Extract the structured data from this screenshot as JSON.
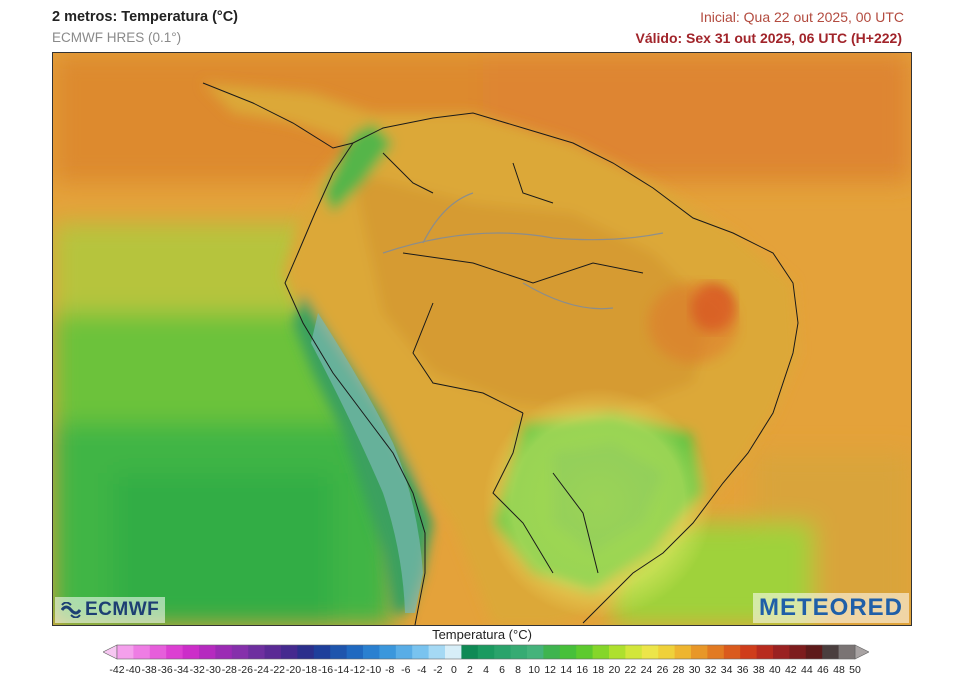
{
  "header": {
    "title": "2 metros: Temperatura (°C)",
    "model": "ECMWF HRES (0.1°)",
    "initial": "Inicial: Qua 22 out 2025, 00 UTC",
    "valid": "Válido: Sex 31 out 2025, 06 UTC (H+222)"
  },
  "logos": {
    "ecmwf": "ECMWF",
    "meteored": "METEORED"
  },
  "legend": {
    "title": "Temperatura (°C)",
    "ticks": [
      "-42",
      "-40",
      "-38",
      "-36",
      "-34",
      "-32",
      "-30",
      "-28",
      "-26",
      "-24",
      "-22",
      "-20",
      "-18",
      "-16",
      "-14",
      "-12",
      "-10",
      "-8",
      "-6",
      "-4",
      "-2",
      "0",
      "2",
      "4",
      "6",
      "8",
      "10",
      "12",
      "14",
      "16",
      "18",
      "20",
      "22",
      "24",
      "26",
      "28",
      "30",
      "32",
      "34",
      "36",
      "38",
      "40",
      "42",
      "44",
      "46",
      "48",
      "50"
    ],
    "colors": [
      "#f6c7f1",
      "#f4a0ec",
      "#ee7de4",
      "#e65edb",
      "#dc3fd2",
      "#cc2dc9",
      "#b52abf",
      "#9b2bb4",
      "#8530ab",
      "#6e2f9f",
      "#5a2a95",
      "#452a8f",
      "#2b2f8c",
      "#1e3f9b",
      "#1e55ad",
      "#2069c0",
      "#2a80d0",
      "#3b97dc",
      "#59ade6",
      "#79c3ef",
      "#a5d9f4",
      "#d7eef8",
      "#0f8a55",
      "#1b9a60",
      "#2aa36b",
      "#37ab73",
      "#45b37b",
      "#3fb44f",
      "#47c03a",
      "#5dca2e",
      "#85d62a",
      "#aee02e",
      "#d2e63b",
      "#ece54a",
      "#efd13a",
      "#eeb530",
      "#e89728",
      "#e27a22",
      "#da5a1d",
      "#cf3d1b",
      "#b82b1e",
      "#9a2121",
      "#7d1c1d",
      "#5e1a1a",
      "#4a3e3e",
      "#7a7474",
      "#a8a3a3"
    ]
  },
  "map": {
    "region": "South America",
    "hotspot_color": "#d43d1d",
    "ocean_color": "#73bb39"
  }
}
